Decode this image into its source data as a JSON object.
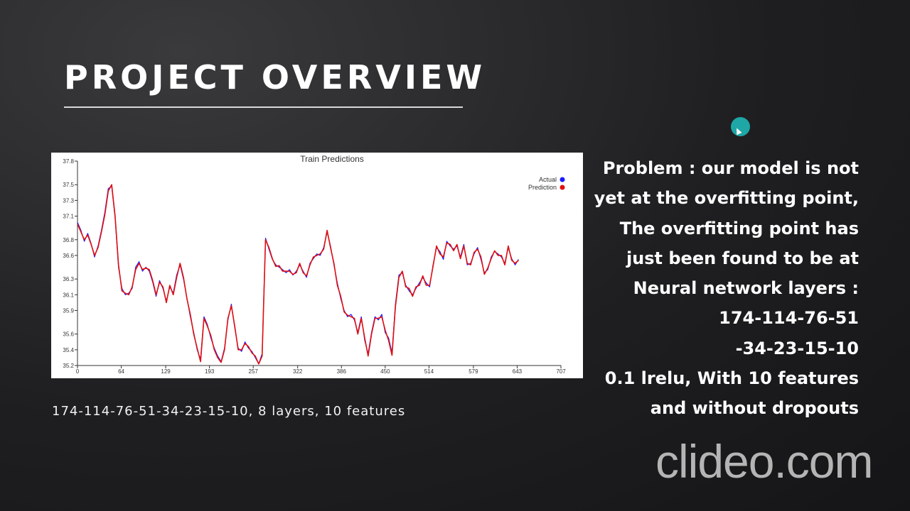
{
  "slide": {
    "title": "PROJECT OVERVIEW",
    "caption": "174-114-76-51-34-23-15-10, 8 layers, 10 features",
    "problem_lines": [
      "Problem : our model is not",
      "yet at the overfitting point,",
      "The overfitting point has",
      "just been found to be at",
      "Neural network layers :",
      "174-114-76-51",
      "-34-23-15-10",
      "0.1 lrelu, With 10 features",
      "and without dropouts"
    ],
    "watermark": "clideo.com"
  },
  "chart_data": {
    "type": "line",
    "title": "Train Predictions",
    "xlabel": "",
    "ylabel": "",
    "xlim": [
      0,
      707
    ],
    "ylim": [
      35.2,
      37.8
    ],
    "x_ticks": [
      0,
      64,
      129,
      193,
      257,
      322,
      386,
      450,
      514,
      579,
      643,
      707
    ],
    "y_ticks": [
      35.2,
      35.4,
      35.6,
      35.9,
      36.1,
      36.3,
      36.6,
      36.8,
      37.1,
      37.3,
      37.5,
      37.8
    ],
    "legend_position": "top-right",
    "grid": false,
    "series": [
      {
        "name": "Actual",
        "color": "#1a1aff",
        "x": [
          0,
          5,
          10,
          15,
          20,
          25,
          30,
          35,
          40,
          45,
          50,
          55,
          60,
          65,
          70,
          75,
          80,
          85,
          90,
          95,
          100,
          105,
          110,
          115,
          120,
          125,
          130,
          135,
          140,
          145,
          150,
          155,
          160,
          165,
          170,
          175,
          180,
          185,
          190,
          195,
          200,
          205,
          210,
          215,
          220,
          225,
          230,
          235,
          240,
          245,
          250,
          255,
          260,
          265,
          270,
          275,
          280,
          285,
          290,
          295,
          300,
          305,
          310,
          315,
          320,
          325,
          330,
          335,
          340,
          345,
          350,
          355,
          360,
          365,
          370,
          375,
          380,
          385,
          390,
          395,
          400,
          405,
          410,
          415,
          420,
          425,
          430,
          435,
          440,
          445,
          450,
          455,
          460,
          465,
          470,
          475,
          480,
          485,
          490,
          495,
          500,
          505,
          510,
          515,
          520,
          525,
          530,
          535,
          540,
          545,
          550,
          555,
          560,
          565,
          570,
          575,
          580,
          585,
          590,
          595,
          600,
          605,
          610,
          615,
          620,
          625,
          630,
          635,
          640,
          645
        ],
        "values": [
          37.02,
          36.92,
          36.78,
          36.88,
          36.75,
          36.58,
          36.72,
          36.92,
          37.15,
          37.45,
          37.48,
          37.08,
          36.45,
          36.18,
          36.1,
          36.12,
          36.18,
          36.45,
          36.52,
          36.4,
          36.45,
          36.4,
          36.26,
          36.08,
          36.28,
          36.18,
          36.02,
          36.2,
          36.12,
          36.35,
          36.48,
          36.3,
          36.06,
          35.82,
          35.62,
          35.4,
          35.28,
          35.82,
          35.72,
          35.55,
          35.42,
          35.32,
          35.25,
          35.42,
          35.78,
          35.98,
          35.68,
          35.42,
          35.38,
          35.5,
          35.42,
          35.38,
          35.3,
          35.22,
          35.35,
          36.82,
          36.68,
          36.55,
          36.48,
          36.45,
          36.42,
          36.38,
          36.42,
          36.35,
          36.4,
          36.48,
          36.4,
          36.32,
          36.5,
          36.56,
          36.62,
          36.6,
          36.7,
          36.9,
          36.72,
          36.48,
          36.25,
          36.05,
          35.9,
          35.82,
          35.85,
          35.78,
          35.62,
          35.82,
          35.52,
          35.35,
          35.62,
          35.82,
          35.78,
          35.85,
          35.62,
          35.55,
          35.36,
          35.98,
          36.35,
          36.38,
          36.22,
          36.15,
          36.1,
          36.18,
          36.25,
          36.32,
          36.25,
          36.2,
          36.48,
          36.7,
          36.65,
          36.55,
          36.78,
          36.72,
          36.68,
          36.72,
          36.58,
          36.74,
          36.48,
          36.5,
          36.62,
          36.7,
          36.55,
          36.38,
          36.42,
          36.58,
          36.65,
          36.62,
          36.58,
          36.5,
          36.7,
          36.56,
          36.48,
          36.55
        ]
      },
      {
        "name": "Prediction",
        "color": "#e01010",
        "x": [
          0,
          5,
          10,
          15,
          20,
          25,
          30,
          35,
          40,
          45,
          50,
          55,
          60,
          65,
          70,
          75,
          80,
          85,
          90,
          95,
          100,
          105,
          110,
          115,
          120,
          125,
          130,
          135,
          140,
          145,
          150,
          155,
          160,
          165,
          170,
          175,
          180,
          185,
          190,
          195,
          200,
          205,
          210,
          215,
          220,
          225,
          230,
          235,
          240,
          245,
          250,
          255,
          260,
          265,
          270,
          275,
          280,
          285,
          290,
          295,
          300,
          305,
          310,
          315,
          320,
          325,
          330,
          335,
          340,
          345,
          350,
          355,
          360,
          365,
          370,
          375,
          380,
          385,
          390,
          395,
          400,
          405,
          410,
          415,
          420,
          425,
          430,
          435,
          440,
          445,
          450,
          455,
          460,
          465,
          470,
          475,
          480,
          485,
          490,
          495,
          500,
          505,
          510,
          515,
          520,
          525,
          530,
          535,
          540,
          545,
          550,
          555,
          560,
          565,
          570,
          575,
          580,
          585,
          590,
          595,
          600,
          605,
          610,
          615,
          620,
          625,
          630,
          635,
          640,
          645
        ],
        "values": [
          37.0,
          36.9,
          36.8,
          36.86,
          36.74,
          36.6,
          36.7,
          36.9,
          37.12,
          37.42,
          37.5,
          37.1,
          36.48,
          36.15,
          36.12,
          36.1,
          36.2,
          36.42,
          36.5,
          36.42,
          36.44,
          36.42,
          36.28,
          36.1,
          36.26,
          36.2,
          36.0,
          36.22,
          36.1,
          36.32,
          36.5,
          36.32,
          36.05,
          35.85,
          35.6,
          35.42,
          35.25,
          35.8,
          35.7,
          35.58,
          35.4,
          35.3,
          35.24,
          35.4,
          35.8,
          35.96,
          35.7,
          35.4,
          35.4,
          35.48,
          35.44,
          35.36,
          35.32,
          35.22,
          35.32,
          36.8,
          36.7,
          36.56,
          36.46,
          36.47,
          36.4,
          36.4,
          36.4,
          36.36,
          36.38,
          36.5,
          36.38,
          36.34,
          36.48,
          36.58,
          36.6,
          36.62,
          36.68,
          36.92,
          36.7,
          36.5,
          36.22,
          36.08,
          35.88,
          35.84,
          35.82,
          35.8,
          35.6,
          35.8,
          35.55,
          35.32,
          35.6,
          35.8,
          35.8,
          35.82,
          35.65,
          35.52,
          35.33,
          35.95,
          36.32,
          36.4,
          36.2,
          36.18,
          36.08,
          36.2,
          36.22,
          36.34,
          36.22,
          36.22,
          36.46,
          36.72,
          36.62,
          36.58,
          36.76,
          36.74,
          36.66,
          36.74,
          36.56,
          36.72,
          36.5,
          36.48,
          36.64,
          36.68,
          36.58,
          36.36,
          36.44,
          36.56,
          36.66,
          36.6,
          36.6,
          36.48,
          36.72,
          36.54,
          36.5,
          36.54
        ]
      }
    ]
  }
}
